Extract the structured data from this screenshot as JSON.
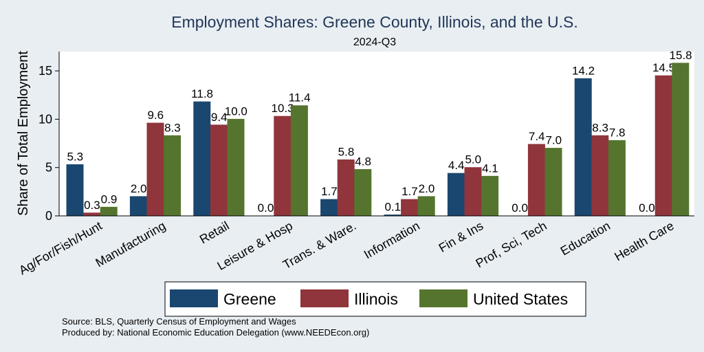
{
  "chart_data": {
    "type": "bar",
    "title": "Employment Shares: Greene County, Illinois, and the U.S.",
    "subtitle": "2024-Q3",
    "xlabel": "",
    "ylabel": "Share of Total Employment",
    "ylim": [
      0,
      17
    ],
    "yticks": [
      0,
      5,
      10,
      15
    ],
    "grid": false,
    "legend_position": "bottom",
    "categories": [
      "Ag/For/Fish/Hunt",
      "Manufacturing",
      "Retail",
      "Leisure & Hosp",
      "Trans. & Ware.",
      "Information",
      "Fin & Ins",
      "Prof, Sci, Tech",
      "Education",
      "Health Care"
    ],
    "series": [
      {
        "name": "Greene",
        "color": "#1a476f",
        "values": [
          5.3,
          2.0,
          11.8,
          0.0,
          1.7,
          0.1,
          4.4,
          0.0,
          14.2,
          0.0
        ]
      },
      {
        "name": "Illinois",
        "color": "#90353b",
        "values": [
          0.3,
          9.6,
          9.4,
          10.3,
          5.8,
          1.7,
          5.0,
          7.4,
          8.3,
          14.5
        ]
      },
      {
        "name": "United States",
        "color": "#55752f",
        "values": [
          0.9,
          8.3,
          10.0,
          11.4,
          4.8,
          2.0,
          4.1,
          7.0,
          7.8,
          15.8
        ]
      }
    ]
  },
  "notes": {
    "source": "Source: BLS, Quarterly Census of Employment and Wages",
    "produced_by": "Produced by: National Economic Education Delegation (www.NEEDEcon.org)"
  }
}
